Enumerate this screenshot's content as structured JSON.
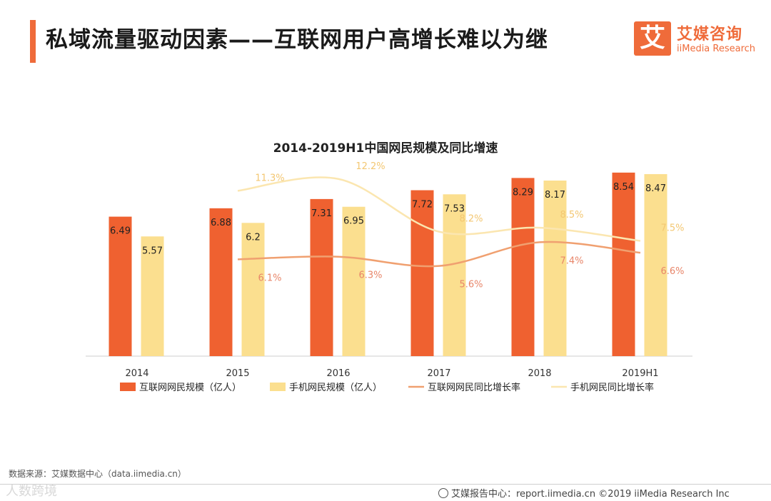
{
  "header": {
    "title": "私域流量驱动因素——互联网用户高增长难以为继",
    "logo_mark": "艾",
    "logo_cn": "艾媒咨询",
    "logo_en": "iiMedia Research",
    "accent_color": "#ef6b3a"
  },
  "chart_data": {
    "type": "bar",
    "title": "2014-2019H1中国网民规模及同比增速",
    "categories": [
      "2014",
      "2015",
      "2016",
      "2017",
      "2018",
      "2019H1"
    ],
    "series": [
      {
        "name": "互联网网民规模（亿人）",
        "kind": "bar",
        "color": "#ef6130",
        "values": [
          6.49,
          6.88,
          7.31,
          7.72,
          8.29,
          8.54
        ],
        "labels": [
          "6.49",
          "6.88",
          "7.31",
          "7.72",
          "8.29",
          "8.54"
        ]
      },
      {
        "name": "手机网民规模（亿人）",
        "kind": "bar",
        "color": "#fbdf8f",
        "values": [
          5.57,
          6.2,
          6.95,
          7.53,
          8.17,
          8.47
        ],
        "labels": [
          "5.57",
          "6.2",
          "6.95",
          "7.53",
          "8.17",
          "8.47"
        ]
      },
      {
        "name": "互联网网民同比增长率",
        "kind": "line",
        "color": "#f0a070",
        "values": [
          null,
          6.1,
          6.3,
          5.6,
          7.4,
          6.6
        ],
        "labels": [
          "",
          "6.1%",
          "6.3%",
          "5.6%",
          "7.4%",
          "6.6%"
        ]
      },
      {
        "name": "手机网民同比增长率",
        "kind": "line",
        "color": "#fbe6b0",
        "values": [
          null,
          11.3,
          12.2,
          8.2,
          8.5,
          7.5
        ],
        "labels": [
          "",
          "11.3%",
          "12.2%",
          "8.2%",
          "8.5%",
          "7.5%"
        ]
      }
    ],
    "bar_ylim": [
      0,
      9
    ],
    "line_ylim": [
      0,
      13
    ],
    "grid": false,
    "legend_position": "bottom"
  },
  "footer": {
    "source": "数据来源：艾媒数据中心（data.iimedia.cn）",
    "watermark": "人数跨境",
    "credit": "艾媒报告中心：report.iimedia.cn ©2019  iiMedia Research  Inc"
  }
}
